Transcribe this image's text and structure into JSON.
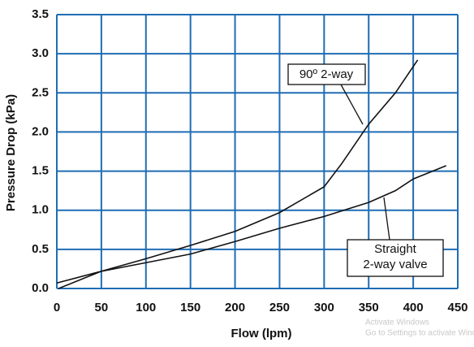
{
  "chart_data": {
    "type": "line",
    "xlabel": "Flow (lpm)",
    "ylabel": "Pressure Drop (kPa)",
    "xlim": [
      0,
      450
    ],
    "ylim": [
      0,
      3.5
    ],
    "xticks": [
      0,
      50,
      100,
      150,
      200,
      250,
      300,
      350,
      400,
      450
    ],
    "yticks": [
      {
        "value": 0,
        "label": "0.0"
      },
      0.5,
      {
        "value": 1,
        "label": "1.0"
      },
      1.5,
      {
        "value": 2,
        "label": "2.0"
      },
      2.5,
      {
        "value": 3,
        "label": "3.0"
      },
      3.5
    ],
    "grid": true,
    "grid_color": "#1f6db5",
    "series": [
      {
        "color": "#111111",
        "x": [
          2,
          50,
          100,
          150,
          200,
          250,
          300,
          320,
          350,
          380,
          405
        ],
        "values": [
          0,
          0.22,
          0.38,
          0.55,
          0.73,
          0.97,
          1.3,
          1.6,
          2.1,
          2.5,
          2.92
        ]
      },
      {
        "color": "#111111",
        "x": [
          0,
          50,
          100,
          150,
          200,
          250,
          300,
          350,
          380,
          400,
          437
        ],
        "values": [
          0.07,
          0.22,
          0.33,
          0.44,
          0.6,
          0.77,
          0.92,
          1.1,
          1.25,
          1.4,
          1.57
        ]
      }
    ],
    "annotations": [
      {
        "lines": [
          "90º 2-way"
        ]
      },
      {
        "lines": [
          "Straight",
          "2-way valve"
        ]
      }
    ],
    "watermark": [
      "Activate Windows",
      "Go to Settings to activate Windows."
    ]
  }
}
